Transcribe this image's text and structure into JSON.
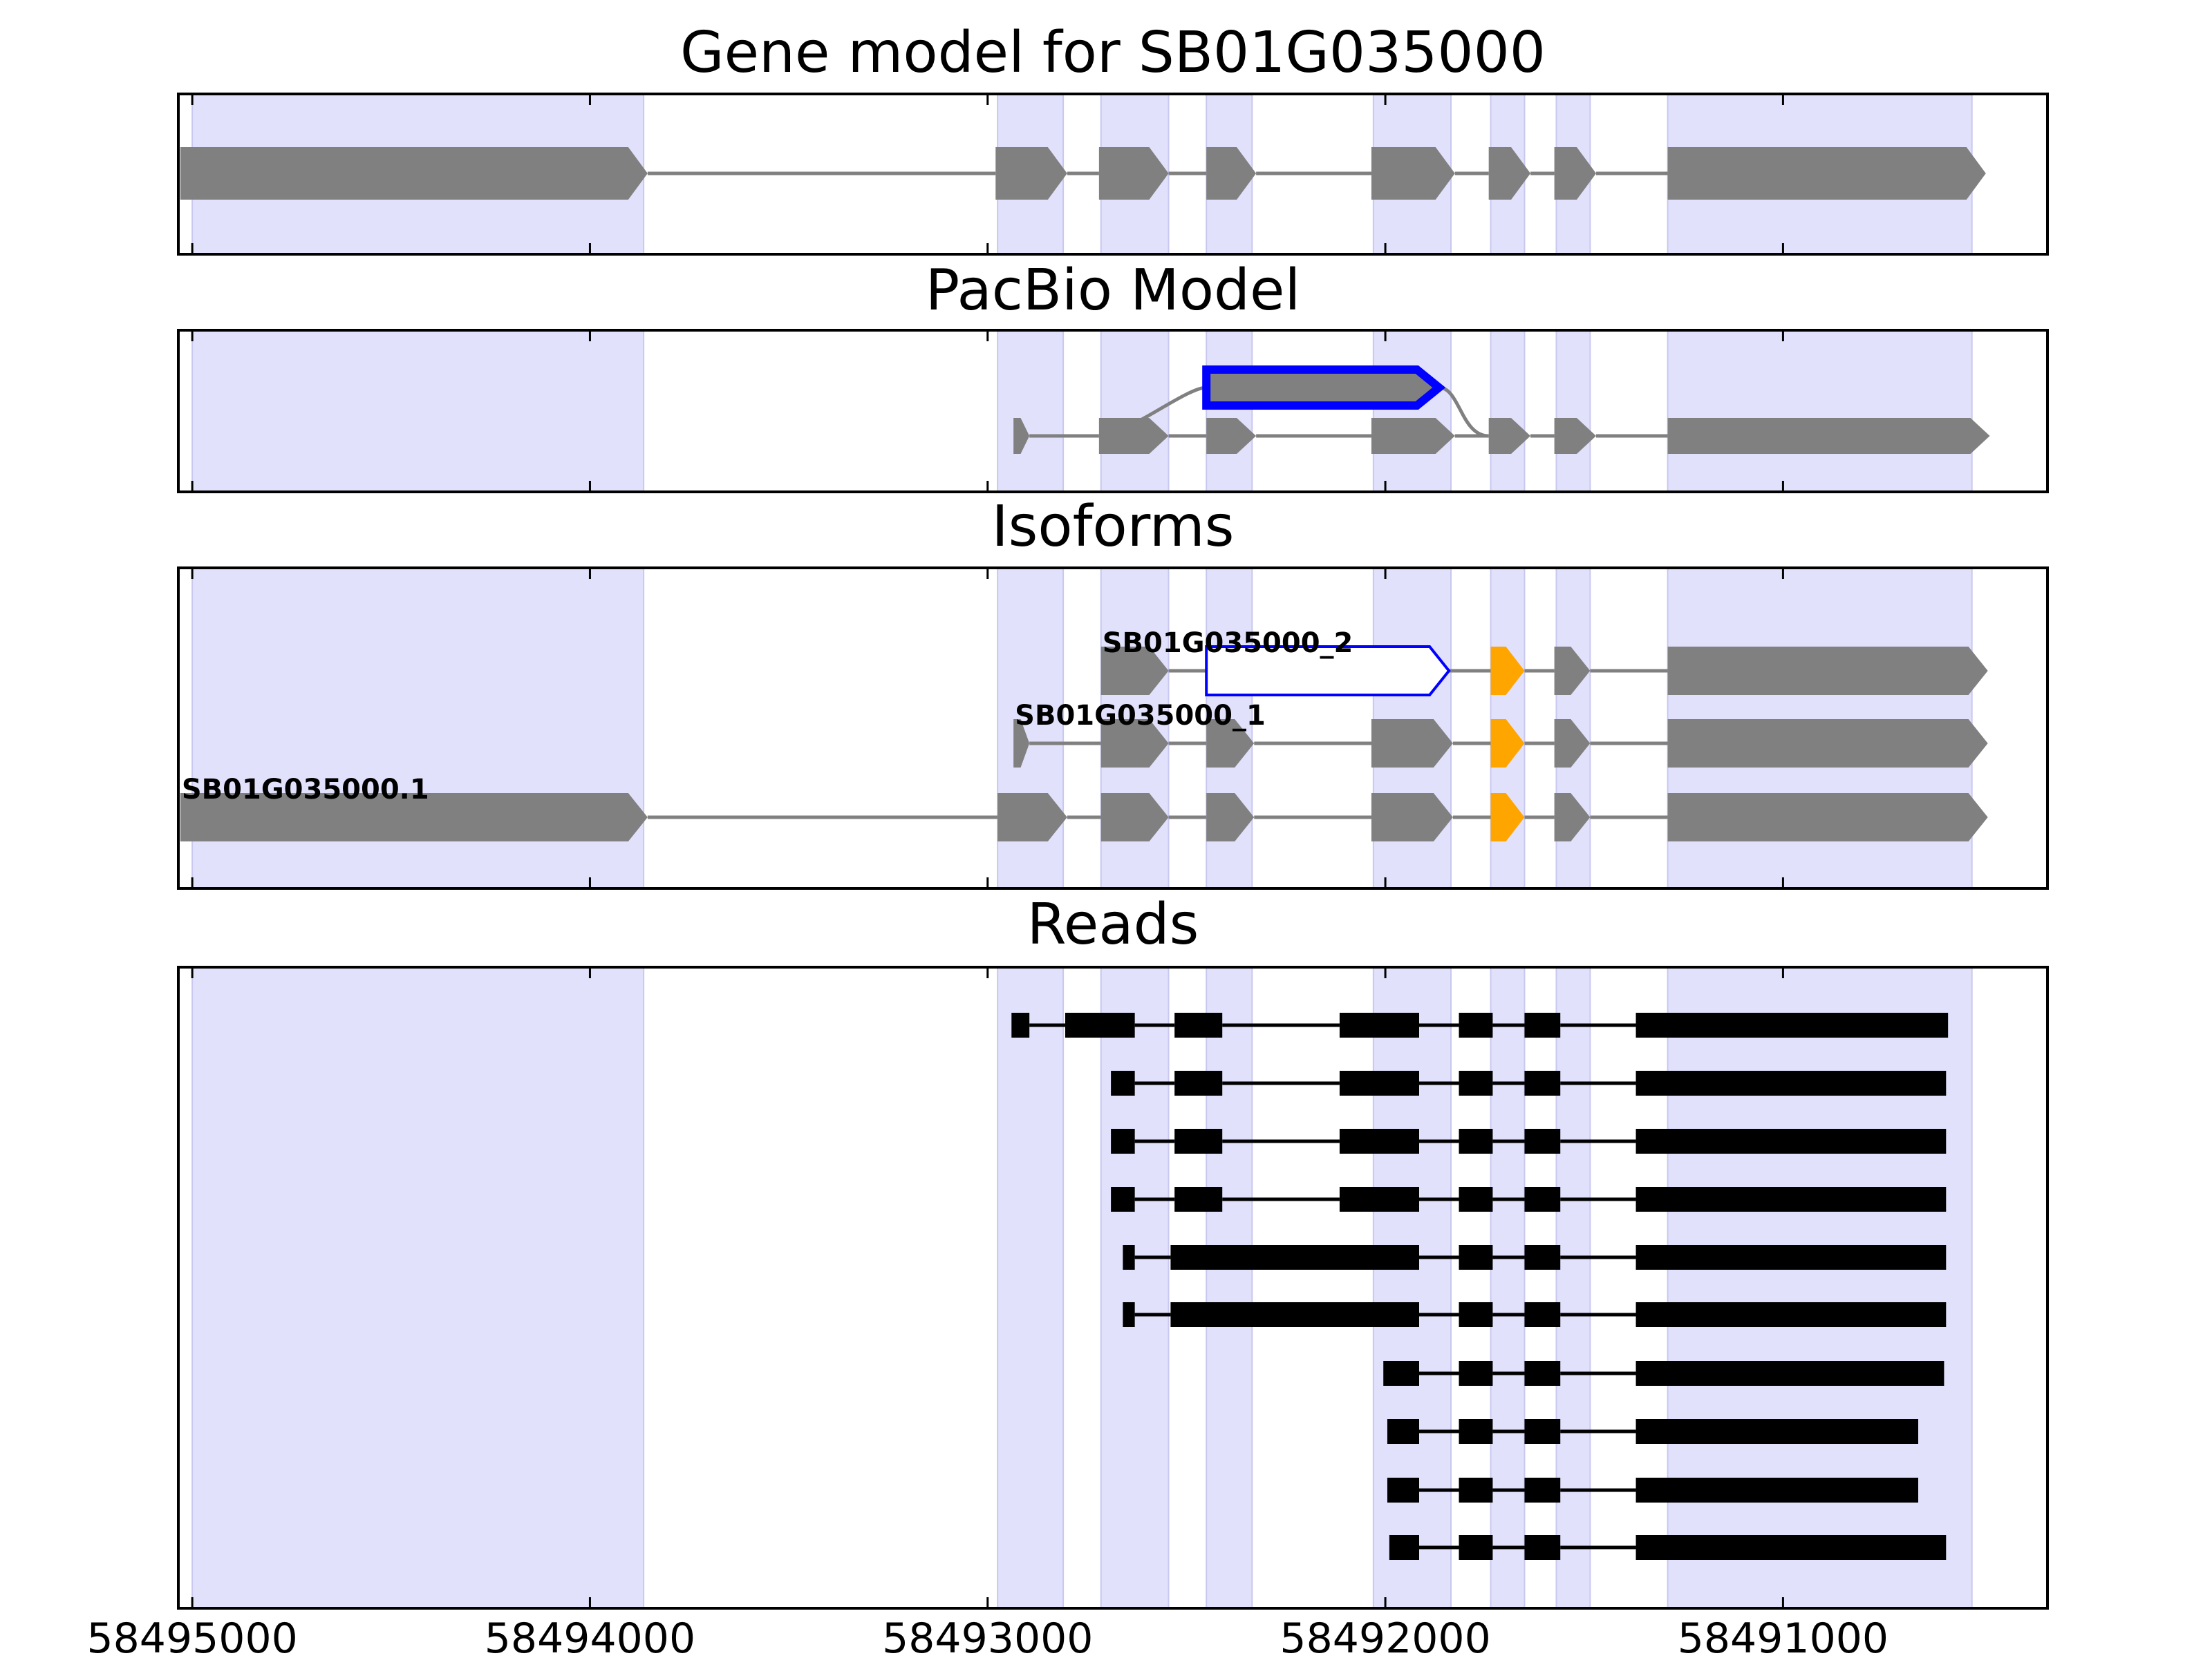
{
  "chart_data": {
    "type": "gene-model-track",
    "x_axis": {
      "range": [
        58495035,
        58490335
      ],
      "direction": "reversed",
      "ticks": [
        58495000,
        58494000,
        58493000,
        58492000,
        58491000
      ],
      "tick_labels": [
        "58495000",
        "58494000",
        "58493000",
        "58492000",
        "58491000"
      ]
    },
    "colors": {
      "highlight": "#e1e1fc",
      "exon": "#808080",
      "selected_outline": "#0000ff",
      "alt_exon": "#ffa500",
      "read": "#000000",
      "intron": "#808080"
    },
    "highlight_regions": [
      [
        58495000,
        58493865
      ],
      [
        58492975,
        58492810
      ],
      [
        58492715,
        58492545
      ],
      [
        58492450,
        58492335
      ],
      [
        58492030,
        58491835
      ],
      [
        58491735,
        58491650
      ],
      [
        58491570,
        58491485
      ],
      [
        58491290,
        58490525
      ]
    ],
    "panels": [
      {
        "title": "Gene model for SB01G035000",
        "tracks": [
          {
            "exons": [
              [
                58495030,
                58493855
              ],
              [
                58492980,
                58492800
              ],
              [
                58492720,
                58492545
              ],
              [
                58492450,
                58492325
              ],
              [
                58492035,
                58491825
              ],
              [
                58491740,
                58491635
              ],
              [
                58491575,
                58491470
              ],
              [
                58491290,
                58490490
              ]
            ]
          }
        ]
      },
      {
        "title": "PacBio Model",
        "tracks": [
          {
            "selected": true,
            "skip_from": 58492720,
            "skip_to": 58491740,
            "exons": [
              [
                58492450,
                58491865
              ]
            ]
          },
          {
            "exons": [
              [
                58492935,
                58492895
              ],
              [
                58492720,
                58492545
              ],
              [
                58492450,
                58492325
              ],
              [
                58492035,
                58491825
              ],
              [
                58491740,
                58491635
              ],
              [
                58491575,
                58491470
              ],
              [
                58491290,
                58490480
              ]
            ]
          }
        ]
      },
      {
        "title": "Isoforms",
        "tracks": [
          {
            "label": "SB01G035000_2",
            "exons": [
              [
                58492715,
                58492545
              ],
              [
                58492450,
                58491840
              ],
              [
                58491735,
                58491650
              ],
              [
                58491575,
                58491485
              ],
              [
                58491290,
                58490485
              ]
            ],
            "selected_exon": 1,
            "alt_exon": 2
          },
          {
            "label": "SB01G035000_1",
            "exons": [
              [
                58492935,
                58492895
              ],
              [
                58492715,
                58492545
              ],
              [
                58492450,
                58492330
              ],
              [
                58492035,
                58491830
              ],
              [
                58491735,
                58491650
              ],
              [
                58491575,
                58491485
              ],
              [
                58491290,
                58490485
              ]
            ],
            "alt_exon": 4
          },
          {
            "label": "SB01G035000.1",
            "exons": [
              [
                58495030,
                58493855
              ],
              [
                58492975,
                58492800
              ],
              [
                58492715,
                58492545
              ],
              [
                58492450,
                58492330
              ],
              [
                58492035,
                58491830
              ],
              [
                58491735,
                58491650
              ],
              [
                58491575,
                58491485
              ],
              [
                58491290,
                58490485
              ]
            ],
            "alt_exon": 5
          }
        ]
      },
      {
        "title": "Reads",
        "tracks": [
          {
            "exons": [
              [
                58492940,
                58492895
              ],
              [
                58492805,
                58492630
              ],
              [
                58492530,
                58492410
              ],
              [
                58492115,
                58491915
              ],
              [
                58491815,
                58491730
              ],
              [
                58491650,
                58491560
              ],
              [
                58491370,
                58490585
              ]
            ]
          },
          {
            "exons": [
              [
                58492690,
                58492630
              ],
              [
                58492530,
                58492410
              ],
              [
                58492115,
                58491915
              ],
              [
                58491815,
                58491730
              ],
              [
                58491650,
                58491560
              ],
              [
                58491370,
                58490590
              ]
            ]
          },
          {
            "exons": [
              [
                58492690,
                58492630
              ],
              [
                58492530,
                58492410
              ],
              [
                58492115,
                58491915
              ],
              [
                58491815,
                58491730
              ],
              [
                58491650,
                58491560
              ],
              [
                58491370,
                58490590
              ]
            ]
          },
          {
            "exons": [
              [
                58492690,
                58492630
              ],
              [
                58492530,
                58492410
              ],
              [
                58492115,
                58491915
              ],
              [
                58491815,
                58491730
              ],
              [
                58491650,
                58491560
              ],
              [
                58491370,
                58490590
              ]
            ]
          },
          {
            "exons": [
              [
                58492660,
                58492630
              ],
              [
                58492540,
                58491915
              ],
              [
                58491815,
                58491730
              ],
              [
                58491650,
                58491560
              ],
              [
                58491370,
                58490590
              ]
            ]
          },
          {
            "exons": [
              [
                58492660,
                58492630
              ],
              [
                58492540,
                58491915
              ],
              [
                58491815,
                58491730
              ],
              [
                58491650,
                58491560
              ],
              [
                58491370,
                58490590
              ]
            ]
          },
          {
            "exons": [
              [
                58492005,
                58491915
              ],
              [
                58491815,
                58491730
              ],
              [
                58491650,
                58491560
              ],
              [
                58491370,
                58490595
              ]
            ]
          },
          {
            "exons": [
              [
                58491995,
                58491915
              ],
              [
                58491815,
                58491730
              ],
              [
                58491650,
                58491560
              ],
              [
                58491370,
                58490660
              ]
            ]
          },
          {
            "exons": [
              [
                58491995,
                58491915
              ],
              [
                58491815,
                58491730
              ],
              [
                58491650,
                58491560
              ],
              [
                58491370,
                58490660
              ]
            ]
          },
          {
            "exons": [
              [
                58491990,
                58491915
              ],
              [
                58491815,
                58491730
              ],
              [
                58491650,
                58491560
              ],
              [
                58491370,
                58490590
              ]
            ]
          }
        ]
      }
    ]
  }
}
